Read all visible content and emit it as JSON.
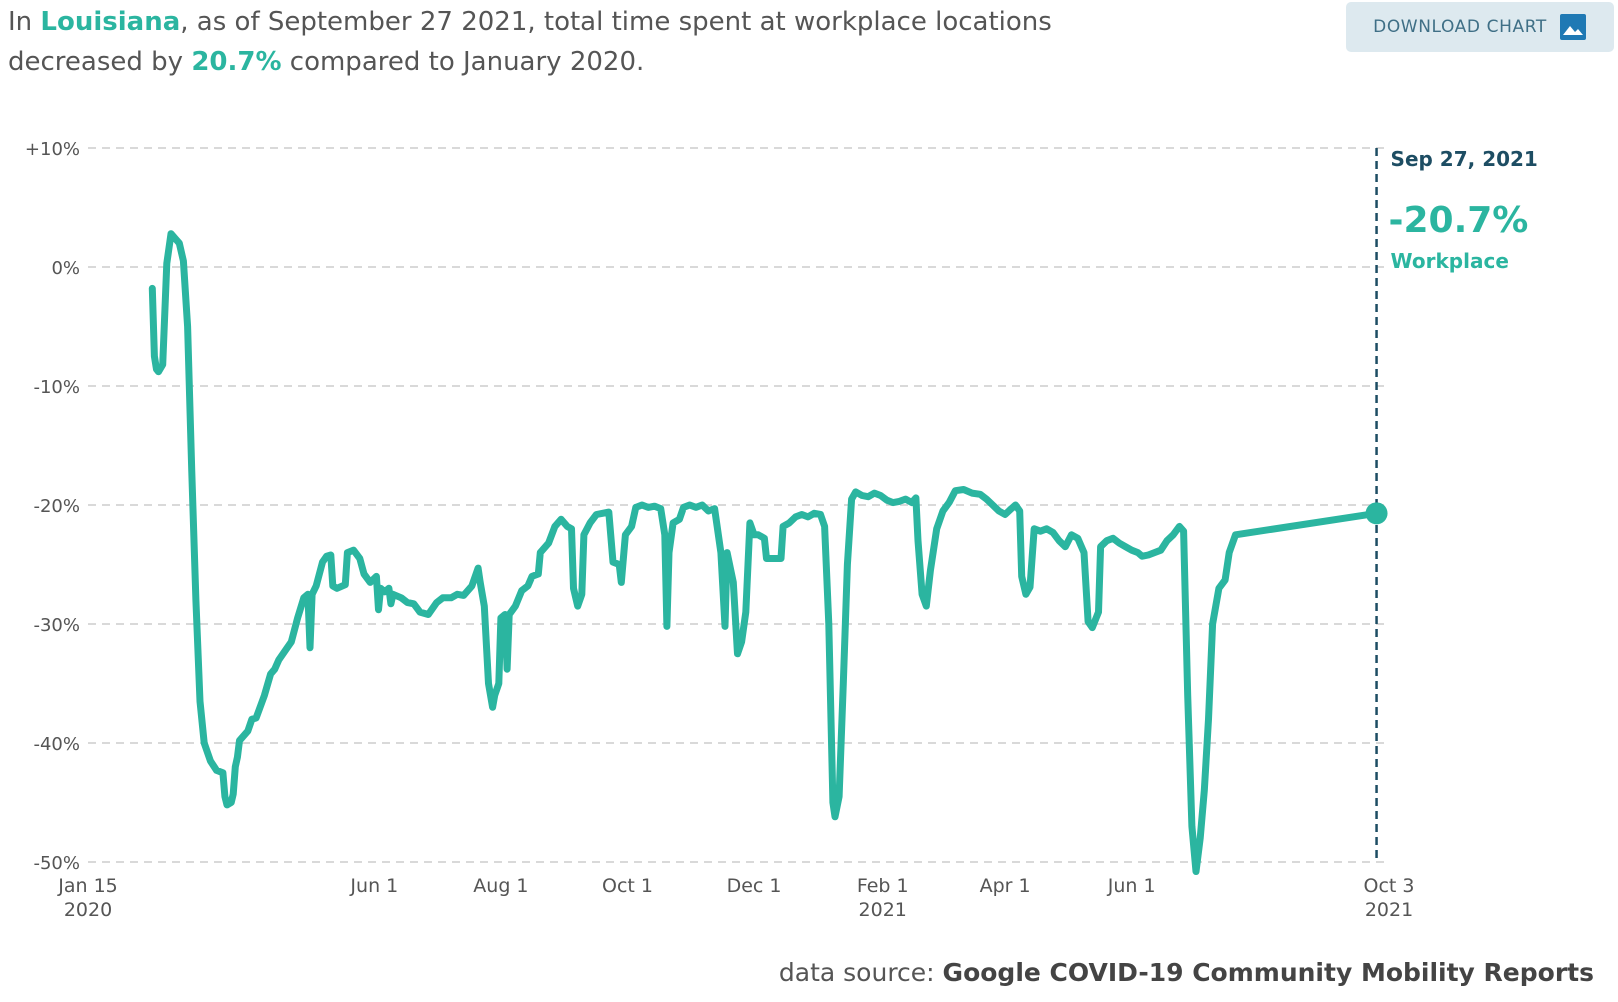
{
  "headline": {
    "prefix": "In ",
    "region": "Louisiana",
    "middle": ", as of September 27 2021, total time spent at workplace locations decreased by ",
    "change": "20.7%",
    "suffix": " compared to January 2020."
  },
  "download_button": {
    "label": "DOWNLOAD CHART",
    "icon": "image-icon"
  },
  "annotation": {
    "date": "Sep 27, 2021",
    "value": "-20.7%",
    "label": "Workplace"
  },
  "source": {
    "prefix": "data source:",
    "name": "Google COVID-19 Community Mobility Reports"
  },
  "colors": {
    "line": "#2bb5a0",
    "marker_line": "#1d4d63",
    "grid": "#d9d9d9"
  },
  "chart_data": {
    "type": "line",
    "title": "",
    "xlabel": "",
    "ylabel": "",
    "grid": true,
    "legend": "none",
    "x_axis": {
      "start": "2020-01-15",
      "end": "2021-10-03",
      "ticks": [
        {
          "date": "2020-01-15",
          "label": "Jan 15",
          "sub": "2020"
        },
        {
          "date": "2020-06-01",
          "label": "Jun 1",
          "sub": ""
        },
        {
          "date": "2020-08-01",
          "label": "Aug 1",
          "sub": ""
        },
        {
          "date": "2020-10-01",
          "label": "Oct 1",
          "sub": ""
        },
        {
          "date": "2020-12-01",
          "label": "Dec 1",
          "sub": ""
        },
        {
          "date": "2021-02-01",
          "label": "Feb 1",
          "sub": "2021"
        },
        {
          "date": "2021-04-01",
          "label": "Apr 1",
          "sub": ""
        },
        {
          "date": "2021-06-01",
          "label": "Jun 1",
          "sub": ""
        },
        {
          "date": "2021-10-03",
          "label": "Oct 3",
          "sub": "2021"
        }
      ]
    },
    "y_axis": {
      "range": [
        -50,
        10
      ],
      "ticks": [
        {
          "value": 10,
          "label": "+10%"
        },
        {
          "value": 0,
          "label": "0%"
        },
        {
          "value": -10,
          "label": "-10%"
        },
        {
          "value": -20,
          "label": "-20%"
        },
        {
          "value": -30,
          "label": "-30%"
        },
        {
          "value": -40,
          "label": "-40%"
        },
        {
          "value": -50,
          "label": "-50%"
        }
      ]
    },
    "highlight": {
      "date": "2021-09-27",
      "value": -20.7
    },
    "series": [
      {
        "points": [
          [
            "2020-02-15",
            -1.8
          ],
          [
            "2020-02-16",
            -7.5
          ],
          [
            "2020-02-17",
            -8.6
          ],
          [
            "2020-02-18",
            -8.8
          ],
          [
            "2020-02-20",
            -8.2
          ],
          [
            "2020-02-22",
            0.3
          ],
          [
            "2020-02-24",
            2.8
          ],
          [
            "2020-02-26",
            2.4
          ],
          [
            "2020-02-28",
            2.0
          ],
          [
            "2020-03-01",
            0.5
          ],
          [
            "2020-03-03",
            -5.0
          ],
          [
            "2020-03-05",
            -17.0
          ],
          [
            "2020-03-07",
            -28.0
          ],
          [
            "2020-03-09",
            -36.5
          ],
          [
            "2020-03-11",
            -40.0
          ],
          [
            "2020-03-14",
            -41.5
          ],
          [
            "2020-03-17",
            -42.3
          ],
          [
            "2020-03-20",
            -42.5
          ],
          [
            "2020-03-21",
            -44.5
          ],
          [
            "2020-03-22",
            -45.2
          ],
          [
            "2020-03-24",
            -45.0
          ],
          [
            "2020-03-25",
            -44.3
          ],
          [
            "2020-03-26",
            -42.0
          ],
          [
            "2020-03-27",
            -41.2
          ],
          [
            "2020-03-28",
            -39.8
          ],
          [
            "2020-04-01",
            -39.0
          ],
          [
            "2020-04-03",
            -38.0
          ],
          [
            "2020-04-05",
            -37.9
          ],
          [
            "2020-04-09",
            -36.0
          ],
          [
            "2020-04-12",
            -34.2
          ],
          [
            "2020-04-14",
            -33.8
          ],
          [
            "2020-04-16",
            -33.0
          ],
          [
            "2020-04-20",
            -32.0
          ],
          [
            "2020-04-22",
            -31.5
          ],
          [
            "2020-04-25",
            -29.5
          ],
          [
            "2020-04-28",
            -27.8
          ],
          [
            "2020-04-30",
            -27.5
          ],
          [
            "2020-05-01",
            -32.0
          ],
          [
            "2020-05-02",
            -27.5
          ],
          [
            "2020-05-04",
            -26.8
          ],
          [
            "2020-05-07",
            -24.8
          ],
          [
            "2020-05-09",
            -24.3
          ],
          [
            "2020-05-11",
            -24.2
          ],
          [
            "2020-05-12",
            -26.8
          ],
          [
            "2020-05-14",
            -27.0
          ],
          [
            "2020-05-18",
            -26.7
          ],
          [
            "2020-05-19",
            -24.0
          ],
          [
            "2020-05-22",
            -23.8
          ],
          [
            "2020-05-25",
            -24.5
          ],
          [
            "2020-05-27",
            -25.8
          ],
          [
            "2020-05-30",
            -26.5
          ],
          [
            "2020-06-02",
            -26.0
          ],
          [
            "2020-06-03",
            -28.8
          ],
          [
            "2020-06-04",
            -27.0
          ],
          [
            "2020-06-06",
            -27.3
          ],
          [
            "2020-06-08",
            -27.0
          ],
          [
            "2020-06-09",
            -28.3
          ],
          [
            "2020-06-10",
            -27.5
          ],
          [
            "2020-06-14",
            -27.8
          ],
          [
            "2020-06-17",
            -28.2
          ],
          [
            "2020-06-20",
            -28.3
          ],
          [
            "2020-06-23",
            -29.0
          ],
          [
            "2020-06-27",
            -29.2
          ],
          [
            "2020-07-01",
            -28.2
          ],
          [
            "2020-07-04",
            -27.8
          ],
          [
            "2020-07-08",
            -27.8
          ],
          [
            "2020-07-11",
            -27.5
          ],
          [
            "2020-07-14",
            -27.6
          ],
          [
            "2020-07-18",
            -26.8
          ],
          [
            "2020-07-21",
            -25.3
          ],
          [
            "2020-07-22",
            -26.5
          ],
          [
            "2020-07-24",
            -28.5
          ],
          [
            "2020-07-26",
            -35.0
          ],
          [
            "2020-07-28",
            -37.0
          ],
          [
            "2020-07-29",
            -36.0
          ],
          [
            "2020-07-31",
            -35.0
          ],
          [
            "2020-08-01",
            -29.5
          ],
          [
            "2020-08-03",
            -29.2
          ],
          [
            "2020-08-04",
            -33.8
          ],
          [
            "2020-08-05",
            -29.2
          ],
          [
            "2020-08-08",
            -28.5
          ],
          [
            "2020-08-11",
            -27.2
          ],
          [
            "2020-08-14",
            -26.8
          ],
          [
            "2020-08-16",
            -26.0
          ],
          [
            "2020-08-19",
            -25.8
          ],
          [
            "2020-08-20",
            -24.0
          ],
          [
            "2020-08-24",
            -23.2
          ],
          [
            "2020-08-27",
            -21.8
          ],
          [
            "2020-08-30",
            -21.2
          ],
          [
            "2020-09-02",
            -21.8
          ],
          [
            "2020-09-04",
            -22.0
          ],
          [
            "2020-09-05",
            -27.0
          ],
          [
            "2020-09-07",
            -28.5
          ],
          [
            "2020-09-09",
            -27.5
          ],
          [
            "2020-09-10",
            -22.5
          ],
          [
            "2020-09-13",
            -21.5
          ],
          [
            "2020-09-16",
            -20.8
          ],
          [
            "2020-09-19",
            -20.7
          ],
          [
            "2020-09-22",
            -20.6
          ],
          [
            "2020-09-24",
            -24.8
          ],
          [
            "2020-09-27",
            -25.0
          ],
          [
            "2020-09-28",
            -26.5
          ],
          [
            "2020-09-30",
            -22.5
          ],
          [
            "2020-10-03",
            -21.8
          ],
          [
            "2020-10-05",
            -20.2
          ],
          [
            "2020-10-08",
            -20.0
          ],
          [
            "2020-10-11",
            -20.2
          ],
          [
            "2020-10-14",
            -20.1
          ],
          [
            "2020-10-17",
            -20.3
          ],
          [
            "2020-10-19",
            -22.5
          ],
          [
            "2020-10-20",
            -30.2
          ],
          [
            "2020-10-21",
            -24.0
          ],
          [
            "2020-10-23",
            -21.5
          ],
          [
            "2020-10-26",
            -21.2
          ],
          [
            "2020-10-28",
            -20.2
          ],
          [
            "2020-10-31",
            -20.0
          ],
          [
            "2020-11-03",
            -20.2
          ],
          [
            "2020-11-06",
            -20.0
          ],
          [
            "2020-11-09",
            -20.5
          ],
          [
            "2020-11-12",
            -20.3
          ],
          [
            "2020-11-15",
            -24.0
          ],
          [
            "2020-11-17",
            -30.2
          ],
          [
            "2020-11-18",
            -24.0
          ],
          [
            "2020-11-21",
            -26.5
          ],
          [
            "2020-11-23",
            -32.5
          ],
          [
            "2020-11-25",
            -31.5
          ],
          [
            "2020-11-27",
            -29.0
          ],
          [
            "2020-11-29",
            -21.5
          ],
          [
            "2020-12-01",
            -22.5
          ],
          [
            "2020-12-03",
            -22.5
          ],
          [
            "2020-12-06",
            -22.8
          ],
          [
            "2020-12-07",
            -24.5
          ],
          [
            "2020-12-10",
            -24.5
          ],
          [
            "2020-12-14",
            -24.5
          ],
          [
            "2020-12-15",
            -21.8
          ],
          [
            "2020-12-18",
            -21.5
          ],
          [
            "2020-12-21",
            -21.0
          ],
          [
            "2020-12-24",
            -20.8
          ],
          [
            "2020-12-27",
            -21.0
          ],
          [
            "2020-12-30",
            -20.7
          ],
          [
            "2021-01-02",
            -20.8
          ],
          [
            "2021-01-04",
            -21.8
          ],
          [
            "2021-01-06",
            -30.0
          ],
          [
            "2021-01-08",
            -45.0
          ],
          [
            "2021-01-09",
            -46.2
          ],
          [
            "2021-01-11",
            -44.5
          ],
          [
            "2021-01-13",
            -35.0
          ],
          [
            "2021-01-15",
            -25.0
          ],
          [
            "2021-01-17",
            -19.5
          ],
          [
            "2021-01-19",
            -18.9
          ],
          [
            "2021-01-22",
            -19.2
          ],
          [
            "2021-01-25",
            -19.3
          ],
          [
            "2021-01-28",
            -19.0
          ],
          [
            "2021-01-31",
            -19.2
          ],
          [
            "2021-02-03",
            -19.6
          ],
          [
            "2021-02-06",
            -19.8
          ],
          [
            "2021-02-09",
            -19.7
          ],
          [
            "2021-02-12",
            -19.5
          ],
          [
            "2021-02-15",
            -19.8
          ],
          [
            "2021-02-17",
            -19.4
          ],
          [
            "2021-02-18",
            -23.0
          ],
          [
            "2021-02-20",
            -27.5
          ],
          [
            "2021-02-22",
            -28.5
          ],
          [
            "2021-02-24",
            -25.5
          ],
          [
            "2021-02-27",
            -22.0
          ],
          [
            "2021-03-02",
            -20.5
          ],
          [
            "2021-03-05",
            -19.8
          ],
          [
            "2021-03-08",
            -18.8
          ],
          [
            "2021-03-12",
            -18.7
          ],
          [
            "2021-03-16",
            -19.0
          ],
          [
            "2021-03-20",
            -19.1
          ],
          [
            "2021-03-23",
            -19.5
          ],
          [
            "2021-03-26",
            -20.0
          ],
          [
            "2021-03-29",
            -20.5
          ],
          [
            "2021-04-01",
            -20.8
          ],
          [
            "2021-04-04",
            -20.3
          ],
          [
            "2021-04-06",
            -20.0
          ],
          [
            "2021-04-08",
            -20.5
          ],
          [
            "2021-04-09",
            -26.0
          ],
          [
            "2021-04-11",
            -27.5
          ],
          [
            "2021-04-13",
            -26.9
          ],
          [
            "2021-04-15",
            -22.0
          ],
          [
            "2021-04-18",
            -22.2
          ],
          [
            "2021-04-21",
            -22.0
          ],
          [
            "2021-04-24",
            -22.3
          ],
          [
            "2021-04-27",
            -23.0
          ],
          [
            "2021-04-30",
            -23.5
          ],
          [
            "2021-05-03",
            -22.5
          ],
          [
            "2021-05-06",
            -22.8
          ],
          [
            "2021-05-09",
            -24.0
          ],
          [
            "2021-05-11",
            -29.8
          ],
          [
            "2021-05-13",
            -30.3
          ],
          [
            "2021-05-16",
            -29.0
          ],
          [
            "2021-05-17",
            -23.5
          ],
          [
            "2021-05-20",
            -23.0
          ],
          [
            "2021-05-23",
            -22.8
          ],
          [
            "2021-05-26",
            -23.2
          ],
          [
            "2021-05-29",
            -23.5
          ],
          [
            "2021-06-01",
            -23.8
          ],
          [
            "2021-06-04",
            -24.0
          ],
          [
            "2021-06-06",
            -24.3
          ],
          [
            "2021-06-09",
            -24.2
          ],
          [
            "2021-06-12",
            -24.0
          ],
          [
            "2021-06-15",
            -23.8
          ],
          [
            "2021-06-18",
            -23.0
          ],
          [
            "2021-06-21",
            -22.5
          ],
          [
            "2021-06-24",
            -21.8
          ],
          [
            "2021-06-26",
            -22.2
          ],
          [
            "2021-06-28",
            -36.0
          ],
          [
            "2021-06-30",
            -47.0
          ],
          [
            "2021-07-02",
            -50.8
          ],
          [
            "2021-07-04",
            -48.0
          ],
          [
            "2021-07-06",
            -44.0
          ],
          [
            "2021-07-08",
            -38.0
          ],
          [
            "2021-07-10",
            -30.0
          ],
          [
            "2021-07-13",
            -27.0
          ],
          [
            "2021-07-16",
            -26.3
          ],
          [
            "2021-07-18",
            -24.0
          ],
          [
            "2021-07-21",
            -22.5
          ],
          [
            "2021-09-27",
            -20.7
          ]
        ]
      }
    ]
  }
}
